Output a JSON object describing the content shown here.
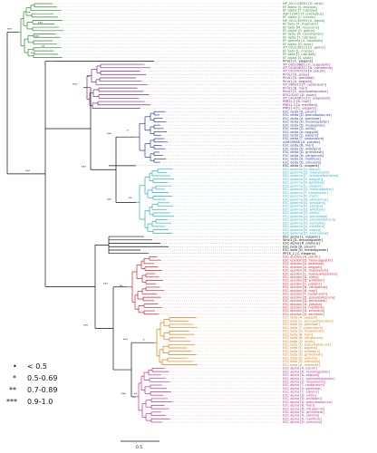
{
  "clade_colors": {
    "green": "#2e8b2e",
    "purple": "#7a2a82",
    "blue": "#2b3aa0",
    "black": "#111111",
    "cyan": "#2ab0c8",
    "red": "#d81e2a",
    "orange": "#e07a10",
    "magenta": "#c0308a"
  },
  "legend": {
    "items": [
      {
        "symbol": "•",
        "label": "< 0.5"
      },
      {
        "symbol": "*",
        "label": "0.5-0.69"
      },
      {
        "symbol": "**",
        "label": "0.7-0.89"
      },
      {
        "symbol": "***",
        "label": "0.9-1.0"
      }
    ]
  },
  "scale_bar": {
    "label": "0.5"
  },
  "leaves": [
    {
      "group": "green",
      "label": "NP_001124891 [D. rerio]"
    },
    {
      "group": "green",
      "label": "EF alpha [S. leucops]"
    },
    {
      "group": "green",
      "label": "EF alpha [T. rubripes]"
    },
    {
      "group": "green",
      "label": "ADF12345 [T. pulchellus]"
    },
    {
      "group": "green",
      "label": "EF alpha [L. crocea]"
    },
    {
      "group": "green",
      "label": "NP_001130993 [X. laevis]"
    },
    {
      "group": "green",
      "label": "EF beta [X. tropicalis]"
    },
    {
      "group": "green",
      "label": "EF beta [M. musculus]"
    },
    {
      "group": "green",
      "label": "EF alpha [G. gallus]"
    },
    {
      "group": "green",
      "label": "EF delta [A. carolinensis]"
    },
    {
      "group": "green",
      "label": "EF delta [T. rubripes]"
    },
    {
      "group": "green",
      "label": "EF gamma [X. tropicalis]"
    },
    {
      "group": "green",
      "label": "EF alpha [D. rerio]"
    },
    {
      "group": "green",
      "label": "XP_001234123 [G. gallus]"
    },
    {
      "group": "green",
      "label": "EF beta [L. crocea]"
    },
    {
      "group": "green",
      "label": "EF beta [T. rubripes]"
    },
    {
      "group": "green",
      "label": "EF alpha [S. salar]"
    },
    {
      "group": "black",
      "label": "Pmd1 [C. elegans]"
    },
    {
      "group": "purple",
      "label": "XP_002398812 [I. scapularis]"
    },
    {
      "group": "purple",
      "label": "XP_001606311 [N. vitripennis]"
    },
    {
      "group": "purple",
      "label": "XP_001947233 [A. pisum]"
    },
    {
      "group": "purple",
      "label": "Pmd1 [D. pulex]"
    },
    {
      "group": "purple",
      "label": "Pmd1 [A. gambiae]"
    },
    {
      "group": "purple",
      "label": "Pmd1 [A. aegypti]"
    },
    {
      "group": "purple",
      "label": "XP_969315 [T. castaneum]"
    },
    {
      "group": "purple",
      "label": "Pmd1 [B. mori]"
    },
    {
      "group": "purple",
      "label": "Pmd1 [C. quinquefasciatus]"
    },
    {
      "group": "purple",
      "label": "EFE23167 [D. pulex]"
    },
    {
      "group": "purple",
      "label": "XP_002406113 [I. scapularis]"
    },
    {
      "group": "purple",
      "label": "PMD1-2 [B. mori]"
    },
    {
      "group": "purple",
      "label": "PMD1-3 [A. mellifera]"
    },
    {
      "group": "purple",
      "label": "PMD1-4 [C. elegans]"
    },
    {
      "group": "blue",
      "label": "ESC delta [A. pisum]"
    },
    {
      "group": "blue",
      "label": "ESC delta [D. pseudoobscura]"
    },
    {
      "group": "blue",
      "label": "ESC delta [A. gambiae]"
    },
    {
      "group": "blue",
      "label": "ESC delta [D. melanogaster]"
    },
    {
      "group": "blue",
      "label": "ESC delta [D. mojavensis]"
    },
    {
      "group": "blue",
      "label": "ESC delta [D. virilis]"
    },
    {
      "group": "blue",
      "label": "ESC delta [A. aegypti]"
    },
    {
      "group": "blue",
      "label": "ESC delta [C. pipiens]"
    },
    {
      "group": "blue",
      "label": "ESC delta [T. castaneum]"
    },
    {
      "group": "blue",
      "label": "AAR09988 [D. yakuba]"
    },
    {
      "group": "blue",
      "label": "ESC delta [B. mori]"
    },
    {
      "group": "blue",
      "label": "ESC delta [D. willistoni]"
    },
    {
      "group": "blue",
      "label": "ESC delta [D. grimshawi]"
    },
    {
      "group": "blue",
      "label": "ESC delta [N. vitripennis]"
    },
    {
      "group": "blue",
      "label": "ESC delta [A. mellifera]"
    },
    {
      "group": "blue",
      "label": "ESC delta [D. simulans]"
    },
    {
      "group": "black",
      "label": "ESC delta [L. vulgaris]"
    },
    {
      "group": "cyan",
      "label": "ESC gamma [A. pisum]"
    },
    {
      "group": "cyan",
      "label": "ESC gamma [D. mojavensis]"
    },
    {
      "group": "cyan",
      "label": "ESC gamma [C. quinquefasciatus]"
    },
    {
      "group": "cyan",
      "label": "ESC gamma [A. aegypti]"
    },
    {
      "group": "cyan",
      "label": "ESC gamma [A. gambiae]"
    },
    {
      "group": "cyan",
      "label": "ESC gamma [C. pipiens]"
    },
    {
      "group": "cyan",
      "label": "ESC gamma [D. melanogaster]"
    },
    {
      "group": "cyan",
      "label": "ESC gamma [T. castaneum]"
    },
    {
      "group": "cyan",
      "label": "ESC gamma [B. mori]"
    },
    {
      "group": "cyan",
      "label": "ESC gamma [N. vitripennis]"
    },
    {
      "group": "cyan",
      "label": "ESC gamma [D. simulans]"
    },
    {
      "group": "cyan",
      "label": "ESC gamma [D. yakuba]"
    },
    {
      "group": "cyan",
      "label": "ESC gamma [D. willistoni]"
    },
    {
      "group": "cyan",
      "label": "ESC gamma [D. virilis]"
    },
    {
      "group": "cyan",
      "label": "ESC gamma [D. grimshawi]"
    },
    {
      "group": "cyan",
      "label": "ESC gamma [D. pseudoobscura]"
    },
    {
      "group": "cyan",
      "label": "ESC gamma [D. sechellia]"
    },
    {
      "group": "cyan",
      "label": "ESC gamma [A. mellifera]"
    },
    {
      "group": "cyan",
      "label": "ESC gamma [D. erecta]"
    },
    {
      "group": "cyan",
      "label": "ESC gamma [D. ananassae]"
    },
    {
      "group": "black",
      "label": "ESC alpha [L. vulgaris]"
    },
    {
      "group": "black",
      "label": "Wnk3 [D. melanogaster]"
    },
    {
      "group": "black",
      "label": "ESC alpha [R. prolixus]"
    },
    {
      "group": "black",
      "label": "ESC beta [A. pisum]"
    },
    {
      "group": "black",
      "label": "ESC beta [D. melanogaster]"
    },
    {
      "group": "black",
      "label": "PPTX_1 [C. elegans]"
    },
    {
      "group": "red",
      "label": "ESC epsilon [A. pisum]"
    },
    {
      "group": "red",
      "label": "ESC epsilon [D. melanogaster]"
    },
    {
      "group": "red",
      "label": "ESC epsilon [A. gambiae]"
    },
    {
      "group": "red",
      "label": "ESC epsilon [A. aegypti]"
    },
    {
      "group": "red",
      "label": "ESC epsilon [D. mojavensis]"
    },
    {
      "group": "red",
      "label": "ESC epsilon [C. quinquefasciatus]"
    },
    {
      "group": "red",
      "label": "ESC epsilon [D. virilis]"
    },
    {
      "group": "red",
      "label": "ESC epsilon [D. willistoni]"
    },
    {
      "group": "red",
      "label": "ESC epsilon [C. pipiens]"
    },
    {
      "group": "red",
      "label": "ESC epsilon [N. vitripennis]"
    },
    {
      "group": "red",
      "label": "ESC epsilon [B. mori]"
    },
    {
      "group": "red",
      "label": "ESC epsilon [T. castaneum]"
    },
    {
      "group": "red",
      "label": "ESC epsilon [D. pseudoobscura]"
    },
    {
      "group": "red",
      "label": "ESC epsilon [D. grimshawi]"
    },
    {
      "group": "red",
      "label": "ESC epsilon [D. yakuba]"
    },
    {
      "group": "red",
      "label": "ESC epsilon [A. mellifera]"
    },
    {
      "group": "red",
      "label": "ESC epsilon [D. simulans]"
    },
    {
      "group": "red",
      "label": "ESC epsilon [D. sechellia]"
    },
    {
      "group": "orange",
      "label": "ESC beta [A. aegypti]"
    },
    {
      "group": "orange",
      "label": "ESC beta [C. quinquefasciatus]"
    },
    {
      "group": "orange",
      "label": "ESC beta [A. gambiae]"
    },
    {
      "group": "orange",
      "label": "ESC beta [T. castaneum]"
    },
    {
      "group": "orange",
      "label": "ESC beta [D. mojavensis]"
    },
    {
      "group": "orange",
      "label": "ESC beta [B. mori]"
    },
    {
      "group": "orange",
      "label": "ESC beta [N. vitripennis]"
    },
    {
      "group": "orange",
      "label": "ESC beta [D. virilis]"
    },
    {
      "group": "orange",
      "label": "ESC beta [D. pseudoobscura]"
    },
    {
      "group": "orange",
      "label": "ESC beta [C. pipiens]"
    },
    {
      "group": "orange",
      "label": "ESC beta [D. willistoni]"
    },
    {
      "group": "orange",
      "label": "ESC beta [D. grimshawi]"
    },
    {
      "group": "orange",
      "label": "ESC beta [D. yakuba]"
    },
    {
      "group": "orange",
      "label": "ESC beta [D. simulans]"
    },
    {
      "group": "orange",
      "label": "ESC beta [A. mellifera]"
    },
    {
      "group": "magenta",
      "label": "ESC alpha [A. pisum]"
    },
    {
      "group": "magenta",
      "label": "ESC alpha [D. melanogaster]"
    },
    {
      "group": "magenta",
      "label": "ESC alpha [A. aegypti]"
    },
    {
      "group": "magenta",
      "label": "ESC alpha [C. quinquefasciatus]"
    },
    {
      "group": "magenta",
      "label": "ESC alpha [D. mojavensis]"
    },
    {
      "group": "magenta",
      "label": "ESC alpha [T. castaneum]"
    },
    {
      "group": "magenta",
      "label": "ESC alpha [A. gambiae]"
    },
    {
      "group": "magenta",
      "label": "ESC alpha [C. pipiens]"
    },
    {
      "group": "magenta",
      "label": "ESC alpha [D. virilis]"
    },
    {
      "group": "magenta",
      "label": "ESC alpha [D. willistoni]"
    },
    {
      "group": "magenta",
      "label": "ESC alpha [D. pseudoobscura]"
    },
    {
      "group": "magenta",
      "label": "ESC alpha [B. mori]"
    },
    {
      "group": "magenta",
      "label": "ESC alpha [N. vitripennis]"
    },
    {
      "group": "magenta",
      "label": "ESC alpha [D. grimshawi]"
    },
    {
      "group": "magenta",
      "label": "ESC alpha [D. yakuba]"
    },
    {
      "group": "magenta",
      "label": "ESC alpha [A. mellifera]"
    },
    {
      "group": "magenta",
      "label": "ESC alpha [D. simulans]"
    }
  ],
  "support_labels": [
    {
      "id": "n-green-root",
      "text": "***"
    },
    {
      "id": "n-green-a",
      "text": "**"
    },
    {
      "id": "n-green-b",
      "text": "***"
    },
    {
      "id": "n-green-c",
      "text": "***"
    },
    {
      "id": "n-green-d",
      "text": "**"
    },
    {
      "id": "n-green-e",
      "text": "***"
    },
    {
      "id": "n-root",
      "text": "***"
    },
    {
      "id": "n-purple",
      "text": "***"
    },
    {
      "id": "n-purple-b",
      "text": "**"
    },
    {
      "id": "n-insect",
      "text": "***"
    },
    {
      "id": "n-blue",
      "text": "***"
    },
    {
      "id": "n-blue-b",
      "text": "*"
    },
    {
      "id": "n-cyan",
      "text": "***"
    },
    {
      "id": "n-cyan-b",
      "text": "**"
    },
    {
      "id": "n-lower",
      "text": "***"
    },
    {
      "id": "n-red",
      "text": "***"
    },
    {
      "id": "n-red-b",
      "text": "**"
    },
    {
      "id": "n-orange",
      "text": "***"
    },
    {
      "id": "n-orange-b",
      "text": "*"
    },
    {
      "id": "n-magenta",
      "text": "***"
    },
    {
      "id": "n-magenta-b",
      "text": "**"
    }
  ]
}
